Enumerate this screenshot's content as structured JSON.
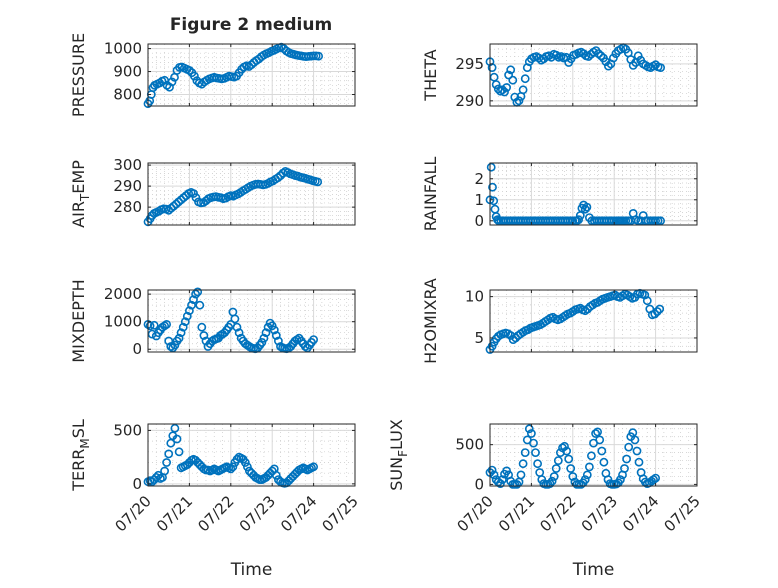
{
  "figure": {
    "title": "Figure 2 medium",
    "marker_color": "#0072BD",
    "xlabel": "Time"
  },
  "chart_data": [
    {
      "type": "scatter",
      "ylabel": "PRESSURE",
      "ylim": [
        750,
        1020
      ],
      "yticks": [
        800,
        900,
        1000
      ],
      "xlim": [
        0,
        5
      ],
      "xticks": [
        "07/20",
        "07/21",
        "07/22",
        "07/23",
        "07/24",
        "07/25"
      ],
      "grid": true,
      "x": [
        0.0,
        0.04,
        0.08,
        0.12,
        0.16,
        0.22,
        0.28,
        0.34,
        0.4,
        0.46,
        0.52,
        0.58,
        0.64,
        0.7,
        0.76,
        0.82,
        0.88,
        0.94,
        1.0,
        1.06,
        1.12,
        1.18,
        1.24,
        1.3,
        1.36,
        1.42,
        1.48,
        1.54,
        1.6,
        1.66,
        1.72,
        1.78,
        1.84,
        1.9,
        1.96,
        2.02,
        2.08,
        2.14,
        2.2,
        2.26,
        2.32,
        2.38,
        2.44,
        2.5,
        2.56,
        2.62,
        2.68,
        2.74,
        2.8,
        2.86,
        2.92,
        2.98,
        3.04,
        3.1,
        3.16,
        3.22,
        3.28,
        3.34,
        3.4,
        3.46,
        3.52,
        3.58,
        3.64,
        3.7,
        3.76,
        3.82,
        3.88,
        3.94,
        4.0,
        4.06,
        4.12
      ],
      "y": [
        760,
        772,
        800,
        830,
        840,
        845,
        850,
        858,
        862,
        840,
        832,
        855,
        875,
        905,
        918,
        920,
        915,
        910,
        905,
        895,
        880,
        860,
        850,
        845,
        855,
        862,
        868,
        872,
        875,
        872,
        870,
        868,
        870,
        875,
        880,
        878,
        876,
        880,
        895,
        910,
        920,
        925,
        922,
        930,
        940,
        948,
        955,
        965,
        972,
        978,
        982,
        988,
        992,
        998,
        1003,
        1006,
        1000,
        990,
        983,
        978,
        975,
        972,
        970,
        968,
        966,
        965,
        966,
        967,
        968,
        968,
        967
      ]
    },
    {
      "type": "scatter",
      "ylabel": "THETA",
      "ylim": [
        289.3,
        297.7
      ],
      "yticks": [
        290,
        295
      ],
      "xlim": [
        0,
        5
      ],
      "xticks": [
        "07/20",
        "07/21",
        "07/22",
        "07/23",
        "07/24",
        "07/25"
      ],
      "grid": true,
      "x": [
        0.0,
        0.05,
        0.1,
        0.15,
        0.2,
        0.25,
        0.3,
        0.35,
        0.4,
        0.45,
        0.5,
        0.55,
        0.6,
        0.65,
        0.7,
        0.75,
        0.8,
        0.85,
        0.9,
        0.95,
        1.0,
        1.06,
        1.12,
        1.18,
        1.24,
        1.3,
        1.36,
        1.42,
        1.48,
        1.54,
        1.6,
        1.66,
        1.72,
        1.78,
        1.84,
        1.9,
        1.96,
        2.02,
        2.08,
        2.14,
        2.2,
        2.26,
        2.32,
        2.38,
        2.44,
        2.5,
        2.56,
        2.62,
        2.68,
        2.74,
        2.8,
        2.86,
        2.92,
        2.98,
        3.04,
        3.1,
        3.16,
        3.22,
        3.28,
        3.34,
        3.4,
        3.46,
        3.52,
        3.58,
        3.64,
        3.7,
        3.76,
        3.82,
        3.88,
        3.94,
        4.0,
        4.06,
        4.12
      ],
      "y": [
        295.3,
        294.5,
        293.2,
        292.2,
        291.6,
        291.3,
        291.5,
        291.2,
        291.8,
        293.5,
        294.2,
        292.8,
        290.5,
        289.8,
        290.0,
        290.6,
        291.5,
        293.0,
        294.5,
        295.3,
        295.7,
        295.9,
        296.0,
        295.8,
        295.5,
        295.7,
        296.0,
        296.1,
        295.9,
        296.3,
        296.2,
        295.9,
        296.0,
        295.8,
        295.9,
        295.2,
        295.7,
        296.2,
        296.3,
        296.5,
        296.6,
        296.4,
        296.1,
        296.0,
        296.3,
        296.6,
        296.8,
        296.4,
        296.1,
        295.8,
        295.3,
        294.7,
        295.0,
        295.8,
        296.4,
        296.8,
        297.0,
        297.2,
        297.0,
        296.5,
        295.6,
        294.8,
        295.2,
        296.1,
        295.5,
        295.0,
        294.8,
        294.6,
        294.5,
        294.7,
        294.9,
        294.6,
        294.5
      ]
    },
    {
      "type": "scatter",
      "ylabel": "AIR_TEMP",
      "ylim": [
        271.5,
        301
      ],
      "yticks": [
        280,
        290,
        300
      ],
      "xlim": [
        0,
        5
      ],
      "xticks": [
        "07/20",
        "07/21",
        "07/22",
        "07/23",
        "07/24",
        "07/25"
      ],
      "grid": true,
      "x": [
        0.0,
        0.05,
        0.1,
        0.15,
        0.2,
        0.26,
        0.32,
        0.38,
        0.44,
        0.5,
        0.56,
        0.62,
        0.68,
        0.74,
        0.8,
        0.86,
        0.92,
        0.98,
        1.04,
        1.1,
        1.16,
        1.22,
        1.28,
        1.34,
        1.4,
        1.46,
        1.52,
        1.58,
        1.64,
        1.7,
        1.76,
        1.82,
        1.88,
        1.94,
        2.0,
        2.06,
        2.12,
        2.18,
        2.24,
        2.3,
        2.36,
        2.42,
        2.48,
        2.54,
        2.6,
        2.66,
        2.72,
        2.78,
        2.84,
        2.9,
        2.96,
        3.02,
        3.08,
        3.14,
        3.2,
        3.26,
        3.32,
        3.38,
        3.44,
        3.5,
        3.56,
        3.62,
        3.68,
        3.74,
        3.8,
        3.86,
        3.92,
        3.98,
        4.04,
        4.1
      ],
      "y": [
        273.0,
        274.5,
        276.0,
        277.0,
        277.5,
        278.0,
        278.8,
        279.2,
        279.0,
        278.5,
        279.5,
        280.5,
        281.5,
        282.5,
        283.5,
        284.5,
        285.5,
        286.5,
        287.0,
        286.5,
        284.5,
        282.5,
        282.0,
        282.2,
        283.0,
        284.0,
        284.5,
        284.8,
        285.0,
        284.7,
        284.5,
        284.0,
        284.3,
        285.0,
        285.5,
        285.2,
        285.8,
        286.3,
        287.0,
        287.8,
        288.5,
        289.3,
        290.0,
        290.5,
        290.8,
        291.0,
        290.8,
        290.6,
        290.8,
        291.3,
        292.0,
        292.5,
        293.3,
        294.0,
        295.0,
        296.2,
        297.0,
        296.5,
        295.8,
        295.5,
        295.0,
        294.7,
        294.3,
        294.0,
        293.7,
        293.3,
        293.0,
        292.6,
        292.3,
        292.0
      ]
    },
    {
      "type": "scatter",
      "ylabel": "RAINFALL",
      "ylim": [
        -0.2,
        2.75
      ],
      "yticks": [
        0,
        1,
        2
      ],
      "xlim": [
        0,
        5
      ],
      "xticks": [
        "07/20",
        "07/21",
        "07/22",
        "07/23",
        "07/24",
        "07/25"
      ],
      "grid": true,
      "x": [
        0.0,
        0.03,
        0.06,
        0.09,
        0.12,
        0.15,
        0.18,
        0.21,
        0.26,
        0.32,
        0.38,
        0.44,
        0.5,
        0.56,
        0.62,
        0.68,
        0.74,
        0.8,
        0.86,
        0.92,
        0.98,
        1.04,
        1.1,
        1.16,
        1.22,
        1.28,
        1.34,
        1.4,
        1.46,
        1.52,
        1.58,
        1.64,
        1.7,
        1.76,
        1.82,
        1.88,
        1.94,
        2.0,
        2.06,
        2.1,
        2.14,
        2.18,
        2.22,
        2.26,
        2.3,
        2.34,
        2.4,
        2.46,
        2.52,
        2.58,
        2.64,
        2.7,
        2.76,
        2.82,
        2.88,
        2.94,
        3.0,
        3.06,
        3.1,
        3.14,
        3.18,
        3.22,
        3.28,
        3.34,
        3.4,
        3.46,
        3.52,
        3.58,
        3.64,
        3.7,
        3.76,
        3.82,
        3.88,
        3.94,
        4.0,
        4.06,
        4.12
      ],
      "y": [
        1.0,
        2.55,
        1.6,
        0.95,
        0.55,
        0.2,
        0.05,
        0.0,
        0.0,
        0.0,
        0.0,
        0.0,
        0.0,
        0.0,
        0.0,
        0.0,
        0.0,
        0.0,
        0.0,
        0.0,
        0.0,
        0.0,
        0.0,
        0.0,
        0.0,
        0.0,
        0.0,
        0.0,
        0.0,
        0.0,
        0.0,
        0.0,
        0.0,
        0.0,
        0.0,
        0.0,
        0.0,
        0.0,
        0.0,
        0.0,
        0.05,
        0.25,
        0.6,
        0.75,
        0.55,
        0.65,
        0.15,
        0.0,
        0.0,
        0.0,
        0.0,
        0.0,
        0.0,
        0.0,
        0.0,
        0.0,
        0.0,
        0.0,
        0.0,
        0.0,
        0.0,
        0.0,
        0.0,
        0.0,
        0.0,
        0.35,
        0.05,
        0.0,
        0.0,
        0.25,
        0.0,
        0.0,
        0.0,
        0.0,
        0.0,
        0.0,
        0.0
      ]
    },
    {
      "type": "scatter",
      "ylabel": "MIXDEPTH",
      "ylim": [
        -100,
        2150
      ],
      "yticks": [
        0,
        1000,
        2000
      ],
      "xlim": [
        0,
        5
      ],
      "xticks": [
        "07/20",
        "07/21",
        "07/22",
        "07/23",
        "07/24",
        "07/25"
      ],
      "grid": true,
      "x": [
        0.0,
        0.05,
        0.1,
        0.15,
        0.2,
        0.25,
        0.3,
        0.35,
        0.4,
        0.45,
        0.5,
        0.55,
        0.6,
        0.65,
        0.7,
        0.75,
        0.8,
        0.85,
        0.9,
        0.95,
        1.0,
        1.05,
        1.1,
        1.15,
        1.2,
        1.25,
        1.3,
        1.35,
        1.4,
        1.45,
        1.5,
        1.55,
        1.6,
        1.65,
        1.7,
        1.75,
        1.8,
        1.85,
        1.9,
        1.95,
        2.0,
        2.05,
        2.1,
        2.15,
        2.2,
        2.25,
        2.3,
        2.35,
        2.4,
        2.45,
        2.5,
        2.55,
        2.6,
        2.65,
        2.7,
        2.75,
        2.8,
        2.85,
        2.9,
        2.95,
        3.0,
        3.05,
        3.1,
        3.15,
        3.2,
        3.25,
        3.3,
        3.35,
        3.4,
        3.45,
        3.5,
        3.55,
        3.6,
        3.65,
        3.7,
        3.75,
        3.8,
        3.85,
        3.9,
        3.95,
        4.0
      ],
      "y": [
        900,
        850,
        550,
        870,
        480,
        600,
        700,
        800,
        850,
        900,
        300,
        100,
        50,
        150,
        300,
        400,
        600,
        800,
        1000,
        1200,
        1400,
        1600,
        1800,
        2000,
        2080,
        1600,
        800,
        500,
        300,
        100,
        200,
        300,
        350,
        380,
        400,
        500,
        550,
        600,
        700,
        800,
        900,
        1350,
        1100,
        800,
        600,
        400,
        300,
        200,
        150,
        100,
        50,
        30,
        20,
        50,
        150,
        250,
        400,
        600,
        800,
        950,
        850,
        700,
        500,
        300,
        100,
        50,
        30,
        20,
        50,
        100,
        200,
        300,
        350,
        400,
        300,
        200,
        100,
        50,
        150,
        250,
        350
      ]
    },
    {
      "type": "scatter",
      "ylabel": "H2OMIXRA",
      "ylim": [
        3.3,
        10.8
      ],
      "yticks": [
        5,
        10
      ],
      "xlim": [
        0,
        5
      ],
      "xticks": [
        "07/20",
        "07/21",
        "07/22",
        "07/23",
        "07/24",
        "07/25"
      ],
      "grid": true,
      "x": [
        0.0,
        0.05,
        0.1,
        0.15,
        0.2,
        0.26,
        0.32,
        0.38,
        0.44,
        0.5,
        0.56,
        0.62,
        0.68,
        0.74,
        0.8,
        0.86,
        0.92,
        0.98,
        1.04,
        1.1,
        1.16,
        1.22,
        1.28,
        1.34,
        1.4,
        1.46,
        1.52,
        1.58,
        1.64,
        1.7,
        1.76,
        1.82,
        1.88,
        1.94,
        2.0,
        2.06,
        2.12,
        2.18,
        2.24,
        2.3,
        2.36,
        2.42,
        2.48,
        2.54,
        2.6,
        2.66,
        2.72,
        2.78,
        2.84,
        2.9,
        2.96,
        3.02,
        3.08,
        3.14,
        3.2,
        3.26,
        3.32,
        3.38,
        3.44,
        3.5,
        3.56,
        3.62,
        3.68,
        3.74,
        3.8,
        3.86,
        3.92,
        3.98,
        4.04,
        4.1
      ],
      "y": [
        3.6,
        4.0,
        4.5,
        4.9,
        5.2,
        5.4,
        5.5,
        5.6,
        5.5,
        5.3,
        4.8,
        5.0,
        5.3,
        5.5,
        5.7,
        5.9,
        6.0,
        6.2,
        6.3,
        6.4,
        6.5,
        6.6,
        6.8,
        7.0,
        7.2,
        7.4,
        7.5,
        7.3,
        7.2,
        7.3,
        7.5,
        7.7,
        7.9,
        8.0,
        8.2,
        8.4,
        8.5,
        8.6,
        8.4,
        8.3,
        8.5,
        8.8,
        9.0,
        9.2,
        9.3,
        9.5,
        9.7,
        9.8,
        9.9,
        10.0,
        10.1,
        10.2,
        10.0,
        9.9,
        10.1,
        10.3,
        10.2,
        10.0,
        9.8,
        9.9,
        10.3,
        10.4,
        10.3,
        10.2,
        9.5,
        8.5,
        7.8,
        7.9,
        8.2,
        8.5
      ]
    },
    {
      "type": "scatter",
      "ylabel": "TERR_MSL",
      "ylim": [
        -20,
        560
      ],
      "yticks": [
        0,
        500
      ],
      "xlim": [
        0,
        5
      ],
      "xticks": [
        "07/20",
        "07/21",
        "07/22",
        "07/23",
        "07/24",
        "07/25"
      ],
      "grid": true,
      "x": [
        0.0,
        0.05,
        0.1,
        0.15,
        0.2,
        0.25,
        0.3,
        0.35,
        0.4,
        0.45,
        0.5,
        0.55,
        0.6,
        0.65,
        0.7,
        0.75,
        0.8,
        0.85,
        0.9,
        0.95,
        1.0,
        1.05,
        1.1,
        1.15,
        1.2,
        1.25,
        1.3,
        1.35,
        1.4,
        1.45,
        1.5,
        1.55,
        1.6,
        1.65,
        1.7,
        1.75,
        1.8,
        1.85,
        1.9,
        1.95,
        2.0,
        2.05,
        2.1,
        2.15,
        2.2,
        2.25,
        2.3,
        2.35,
        2.4,
        2.45,
        2.5,
        2.55,
        2.6,
        2.65,
        2.7,
        2.75,
        2.8,
        2.85,
        2.9,
        2.95,
        3.0,
        3.05,
        3.1,
        3.15,
        3.2,
        3.25,
        3.3,
        3.35,
        3.4,
        3.45,
        3.5,
        3.55,
        3.6,
        3.65,
        3.7,
        3.75,
        3.8,
        3.85,
        3.9,
        3.95,
        4.0
      ],
      "y": [
        20,
        30,
        20,
        40,
        60,
        80,
        50,
        60,
        120,
        200,
        280,
        380,
        450,
        520,
        420,
        300,
        150,
        160,
        170,
        180,
        200,
        220,
        230,
        220,
        200,
        180,
        160,
        140,
        130,
        130,
        120,
        130,
        140,
        130,
        120,
        130,
        140,
        150,
        160,
        150,
        140,
        160,
        200,
        230,
        250,
        240,
        230,
        200,
        160,
        120,
        100,
        80,
        60,
        50,
        40,
        40,
        50,
        60,
        80,
        100,
        120,
        140,
        80,
        40,
        20,
        10,
        5,
        10,
        30,
        50,
        70,
        90,
        110,
        130,
        140,
        150,
        140,
        130,
        140,
        150,
        160
      ]
    },
    {
      "type": "scatter",
      "ylabel": "SUN_FLUX",
      "ylim": [
        -20,
        760
      ],
      "yticks": [
        0,
        500
      ],
      "xlim": [
        0,
        5
      ],
      "xticks": [
        "07/20",
        "07/21",
        "07/22",
        "07/23",
        "07/24",
        "07/25"
      ],
      "grid": true,
      "x": [
        0.0,
        0.05,
        0.1,
        0.15,
        0.2,
        0.25,
        0.3,
        0.35,
        0.4,
        0.45,
        0.5,
        0.55,
        0.6,
        0.65,
        0.7,
        0.75,
        0.8,
        0.85,
        0.9,
        0.95,
        1.0,
        1.05,
        1.1,
        1.15,
        1.2,
        1.25,
        1.3,
        1.35,
        1.4,
        1.45,
        1.5,
        1.55,
        1.6,
        1.65,
        1.7,
        1.75,
        1.8,
        1.85,
        1.9,
        1.95,
        2.0,
        2.05,
        2.1,
        2.15,
        2.2,
        2.25,
        2.3,
        2.35,
        2.4,
        2.45,
        2.5,
        2.55,
        2.6,
        2.65,
        2.7,
        2.75,
        2.8,
        2.85,
        2.9,
        2.95,
        3.0,
        3.05,
        3.1,
        3.15,
        3.2,
        3.25,
        3.3,
        3.35,
        3.4,
        3.45,
        3.5,
        3.55,
        3.6,
        3.65,
        3.7,
        3.75,
        3.8,
        3.85,
        3.9,
        3.95,
        4.0
      ],
      "y": [
        150,
        180,
        120,
        60,
        30,
        10,
        60,
        130,
        170,
        120,
        40,
        0,
        0,
        0,
        30,
        120,
        260,
        400,
        560,
        700,
        640,
        520,
        400,
        260,
        150,
        60,
        10,
        0,
        0,
        10,
        40,
        100,
        200,
        300,
        400,
        460,
        480,
        420,
        320,
        200,
        100,
        30,
        0,
        0,
        0,
        20,
        60,
        120,
        220,
        360,
        520,
        640,
        660,
        560,
        420,
        280,
        140,
        60,
        10,
        0,
        0,
        5,
        20,
        60,
        120,
        200,
        320,
        470,
        600,
        650,
        560,
        420,
        280,
        150,
        70,
        30,
        10,
        20,
        40,
        60,
        80
      ]
    }
  ]
}
